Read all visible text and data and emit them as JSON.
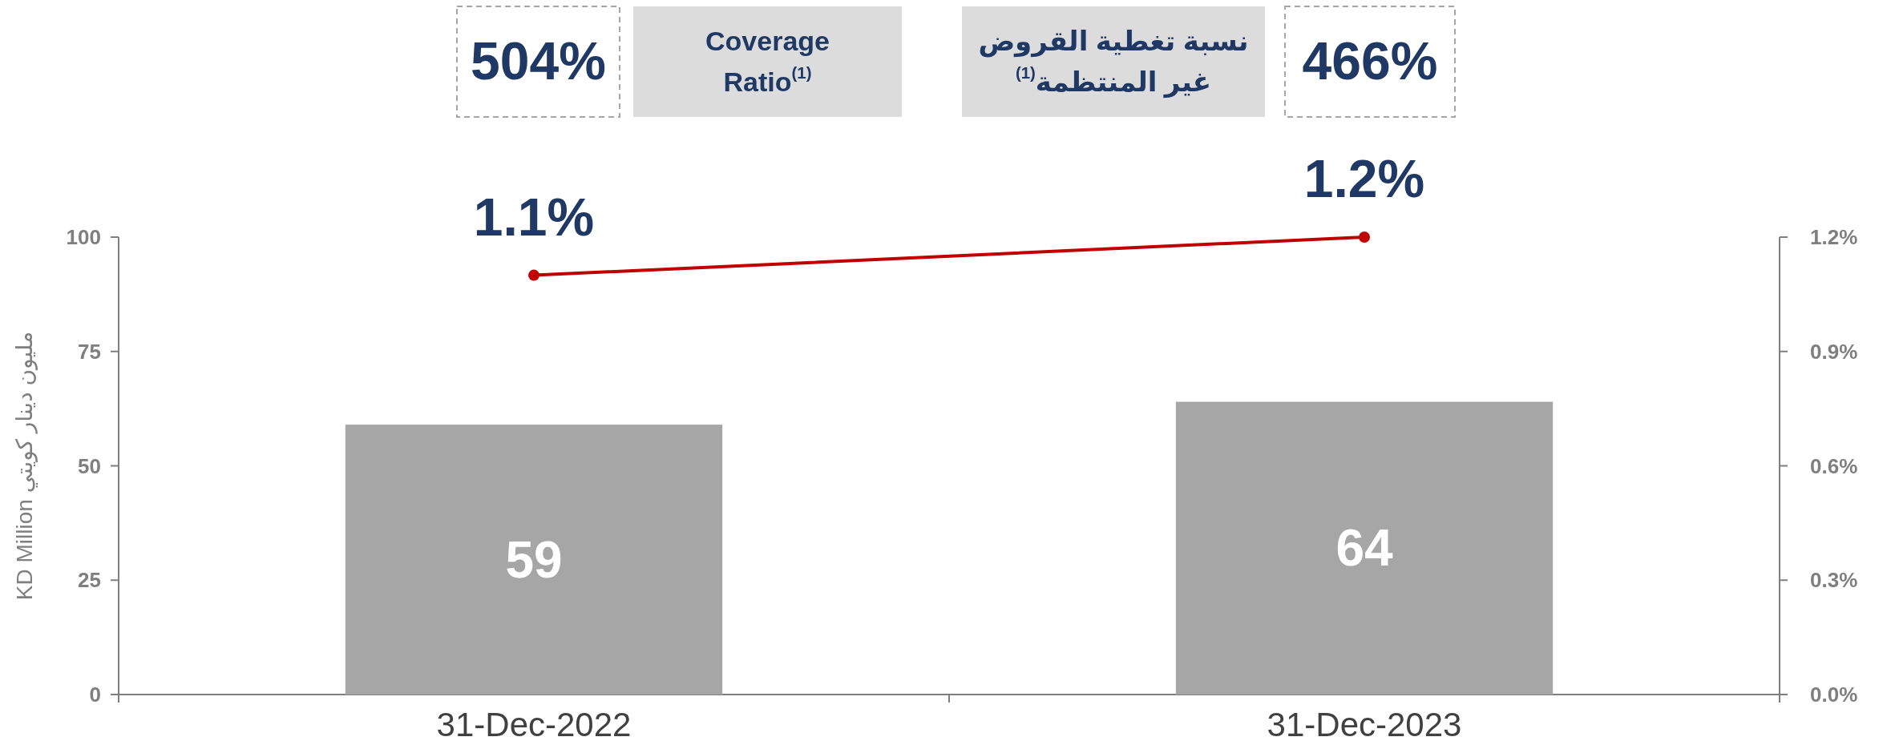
{
  "chart_data": {
    "type": "bar",
    "categories": [
      "31-Dec-2022",
      "31-Dec-2023"
    ],
    "ylabel": "KD Million  مليون دينار كويتي",
    "ylim": [
      0,
      100
    ],
    "yticks": [
      0,
      25,
      50,
      75,
      100
    ],
    "y2lim": [
      0,
      1.2
    ],
    "y2ticks": [
      {
        "value": 0,
        "label": "0.0%"
      },
      {
        "value": 0.3,
        "label": "0.3%"
      },
      {
        "value": 0.6,
        "label": "0.6%"
      },
      {
        "value": 0.9,
        "label": "0.9%"
      },
      {
        "value": 1.2,
        "label": "1.2%"
      }
    ],
    "series": [
      {
        "color": "#a6a6a6",
        "values": [
          59,
          64
        ],
        "value_labels": [
          "59",
          "64"
        ]
      },
      {
        "type": "line",
        "axis": "y2",
        "color": "#c00000",
        "values": [
          1.1,
          1.2
        ],
        "value_labels": [
          "1.1%",
          "1.2%"
        ],
        "marker": "circle"
      }
    ],
    "annotations": [
      "504%",
      "Coverage\nRatio$^{(1)}$",
      "نسبة تغطية القروض\nغير المنتظمة$^{(1)}$",
      "466%"
    ],
    "grid": false
  }
}
